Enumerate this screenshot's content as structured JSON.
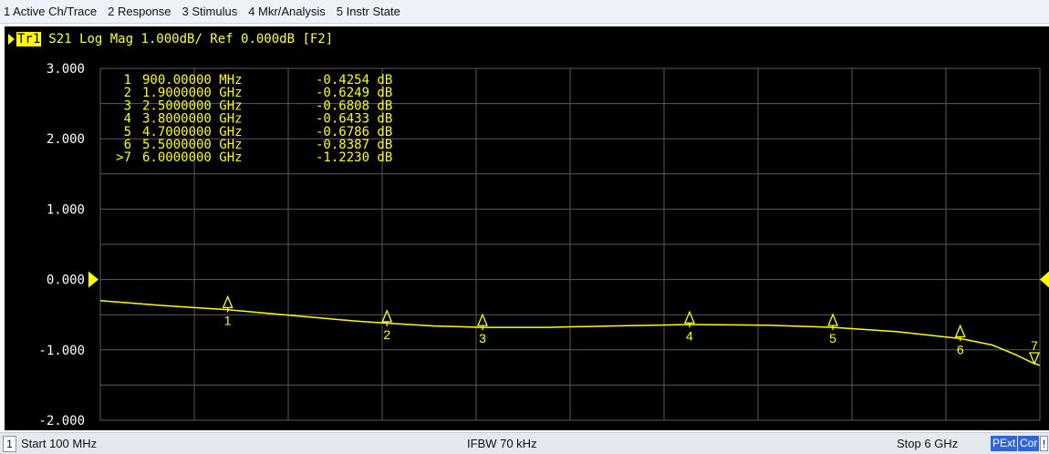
{
  "menu": {
    "items": [
      "1 Active Ch/Trace",
      "2 Response",
      "3 Stimulus",
      "4 Mkr/Analysis",
      "5 Instr State"
    ]
  },
  "trace": {
    "badge": "Tr1",
    "header_text": "S21 Log Mag 1.000dB/ Ref 0.000dB [F2]"
  },
  "colors": {
    "trace": "#ffff00",
    "grid": "#5a5a5a",
    "background": "#000000",
    "badge_blue": "#2f65d8"
  },
  "chart_data": {
    "type": "line",
    "x_unit": "GHz",
    "y_unit": "dB",
    "xlim": [
      0.1,
      6.0
    ],
    "ylim": [
      -2.0,
      3.0
    ],
    "y_ticks": [
      "3.000",
      "2.000",
      "1.000",
      "0.000",
      "-1.000",
      "-2.000"
    ],
    "y_tick_values": [
      3,
      2,
      1,
      0,
      -1,
      -2
    ],
    "reference_level": 0.0,
    "grid": true,
    "series": [
      {
        "x": [
          0.1,
          0.5,
          0.9,
          1.3,
          1.7,
          1.9,
          2.2,
          2.5,
          2.9,
          3.3,
          3.8,
          4.3,
          4.7,
          5.1,
          5.5,
          5.7,
          5.85,
          5.95,
          6.0
        ],
        "y": [
          -0.3,
          -0.37,
          -0.43,
          -0.51,
          -0.59,
          -0.62,
          -0.66,
          -0.68,
          -0.68,
          -0.66,
          -0.64,
          -0.65,
          -0.68,
          -0.74,
          -0.84,
          -0.93,
          -1.07,
          -1.18,
          -1.22
        ]
      }
    ],
    "markers": [
      {
        "label": "1",
        "freq": "900.00000",
        "unit": "MHz",
        "value": "-0.4254",
        "val_unit": "dB",
        "x": 0.9,
        "y": -0.4254,
        "active": false
      },
      {
        "label": "2",
        "freq": "1.9000000",
        "unit": "GHz",
        "value": "-0.6249",
        "val_unit": "dB",
        "x": 1.9,
        "y": -0.6249,
        "active": false
      },
      {
        "label": "3",
        "freq": "2.5000000",
        "unit": "GHz",
        "value": "-0.6808",
        "val_unit": "dB",
        "x": 2.5,
        "y": -0.6808,
        "active": false
      },
      {
        "label": "4",
        "freq": "3.8000000",
        "unit": "GHz",
        "value": "-0.6433",
        "val_unit": "dB",
        "x": 3.8,
        "y": -0.6433,
        "active": false
      },
      {
        "label": "5",
        "freq": "4.7000000",
        "unit": "GHz",
        "value": "-0.6786",
        "val_unit": "dB",
        "x": 4.7,
        "y": -0.6786,
        "active": false
      },
      {
        "label": "6",
        "freq": "5.5000000",
        "unit": "GHz",
        "value": "-0.8387",
        "val_unit": "dB",
        "x": 5.5,
        "y": -0.8387,
        "active": false
      },
      {
        "label": ">7",
        "freq": "6.0000000",
        "unit": "GHz",
        "value": "-1.2230",
        "val_unit": "dB",
        "x": 6.0,
        "y": -1.223,
        "active": true
      }
    ]
  },
  "footer": {
    "channel": "1",
    "start": "Start 100 MHz",
    "ifbw": "IFBW 70 kHz",
    "stop": "Stop 6 GHz",
    "pext": "PExt",
    "cor": "Cor",
    "warning": "!"
  }
}
